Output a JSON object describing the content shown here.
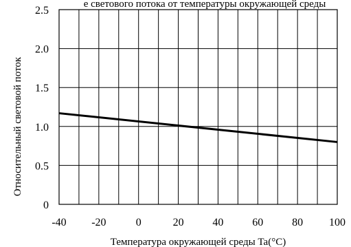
{
  "chart_data": {
    "type": "line",
    "title": "",
    "title_visible_fragment": "е светового потока от температуры окружающей среды",
    "xlabel": "Температура окружающей среды Ta(°C)",
    "ylabel": "Относительный световой поток",
    "xlim": [
      -40,
      100
    ],
    "ylim": [
      0,
      2.5
    ],
    "x_tick_labels": [
      "-40",
      "-20",
      "0",
      "20",
      "40",
      "60",
      "80",
      "100"
    ],
    "y_tick_labels": [
      "0",
      "0.5",
      "1.0",
      "1.5",
      "2.0",
      "2.5"
    ],
    "x_ticks": [
      -40,
      -20,
      0,
      20,
      40,
      60,
      80,
      100
    ],
    "y_ticks": [
      0,
      0.5,
      1.0,
      1.5,
      2.0,
      2.5
    ],
    "x_gridlines": [
      -40,
      -30,
      -20,
      -10,
      0,
      10,
      20,
      30,
      40,
      50,
      60,
      70,
      80,
      90,
      100
    ],
    "y_gridlines": [
      0,
      0.5,
      1.0,
      1.5,
      2.0,
      2.5
    ],
    "grid": true,
    "series": [
      {
        "x": [
          -40,
          100
        ],
        "y": [
          1.17,
          0.8
        ]
      }
    ],
    "colors": {
      "line": "#000000",
      "grid": "#000000",
      "axis": "#000000",
      "background": "#ffffff"
    }
  }
}
